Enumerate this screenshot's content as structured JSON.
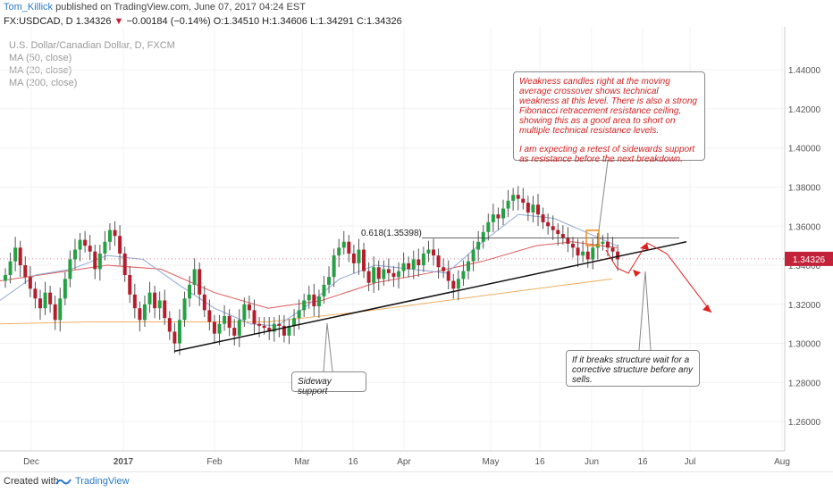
{
  "header": {
    "author": "Tom_Killick",
    "published": "published on TradingView.com, June 07, 2017 04:24 EST"
  },
  "quote": {
    "symbol": "FX:USDCAD, D",
    "last": "1.34326",
    "change": "−0.00184 (−0.14%)",
    "o": "O:1.34510",
    "h": "H:1.34606",
    "l": "L:1.34291",
    "c": "C:1.34326"
  },
  "legend": {
    "series": "U.S. Dollar/Canadian Dollar, D, FXCM",
    "ma50": "MA (50, close)",
    "ma20": "MA (20, close)",
    "ma200": "MA (200, close)"
  },
  "annotations": {
    "top_note_1": "Weakness candles right at the moving average crossover shows technical weakness at this level. There is also a strong Fibonacci retracement resistance ceiling, showing this as a good area to short on multiple technical resistance levels.",
    "top_note_2": "I am expecting a retest of sidewards support as resistance before the next breakdown.",
    "bottom_note": "If it breaks structure wait for a corrective structure before any sells.",
    "side_note": "Sideway support",
    "fib_label": "0.618(1.35398)"
  },
  "footer": {
    "created": "Created with",
    "brand": "TradingView"
  },
  "colors": {
    "up": "#26a044",
    "down": "#b41e2c",
    "ma20": "#8fa8d8",
    "ma50": "#e05a5a",
    "ma200": "#f0b060",
    "arrow": "#e02020",
    "price_tag": "#c2223a"
  },
  "chart_data": {
    "type": "candlestick",
    "y_ticks": [
      "1.44000",
      "1.42000",
      "1.40000",
      "1.38000",
      "1.36000",
      "1.34000",
      "1.32000",
      "1.30000",
      "1.28000",
      "1.26000"
    ],
    "x_ticks": [
      "Dec",
      "2017",
      "Feb",
      "Mar",
      "16",
      "Apr",
      "May",
      "16",
      "Jun",
      "16",
      "Jul",
      "Aug"
    ],
    "ylim": [
      1.245,
      1.462
    ],
    "current_price_label": "1.34326",
    "fib_level": 1.35398,
    "closes": [
      1.335,
      1.342,
      1.349,
      1.34,
      1.334,
      1.328,
      1.323,
      1.318,
      1.326,
      1.32,
      1.312,
      1.323,
      1.333,
      1.343,
      1.348,
      1.353,
      1.35,
      1.347,
      1.338,
      1.346,
      1.352,
      1.358,
      1.355,
      1.346,
      1.335,
      1.325,
      1.318,
      1.312,
      1.32,
      1.326,
      1.318,
      1.322,
      1.313,
      1.306,
      1.3,
      1.312,
      1.323,
      1.33,
      1.338,
      1.325,
      1.317,
      1.311,
      1.305,
      1.31,
      1.314,
      1.308,
      1.304,
      1.312,
      1.32,
      1.317,
      1.31,
      1.309,
      1.308,
      1.306,
      1.31,
      1.309,
      1.304,
      1.309,
      1.313,
      1.317,
      1.322,
      1.325,
      1.319,
      1.324,
      1.33,
      1.334,
      1.345,
      1.349,
      1.352,
      1.346,
      1.341,
      1.348,
      1.337,
      1.331,
      1.339,
      1.333,
      1.338,
      1.336,
      1.334,
      1.337,
      1.341,
      1.338,
      1.343,
      1.34,
      1.346,
      1.348,
      1.345,
      1.339,
      1.337,
      1.332,
      1.328,
      1.333,
      1.337,
      1.342,
      1.348,
      1.352,
      1.357,
      1.362,
      1.366,
      1.364,
      1.369,
      1.373,
      1.376,
      1.374,
      1.372,
      1.367,
      1.371,
      1.366,
      1.362,
      1.36,
      1.358,
      1.356,
      1.354,
      1.351,
      1.349,
      1.345,
      1.347,
      1.343,
      1.349,
      1.351,
      1.352,
      1.349,
      1.347,
      1.343
    ],
    "ma20_points": [
      [
        0,
        1.322
      ],
      [
        40,
        1.335
      ],
      [
        80,
        1.338
      ],
      [
        120,
        1.345
      ],
      [
        160,
        1.343
      ],
      [
        200,
        1.33
      ],
      [
        240,
        1.318
      ],
      [
        280,
        1.31
      ],
      [
        310,
        1.309
      ],
      [
        340,
        1.318
      ],
      [
        380,
        1.333
      ],
      [
        420,
        1.34
      ],
      [
        460,
        1.338
      ],
      [
        500,
        1.336
      ],
      [
        540,
        1.352
      ],
      [
        580,
        1.366
      ],
      [
        620,
        1.364
      ],
      [
        660,
        1.356
      ],
      [
        690,
        1.35
      ]
    ],
    "ma50_points": [
      [
        0,
        1.332
      ],
      [
        60,
        1.336
      ],
      [
        120,
        1.34
      ],
      [
        180,
        1.338
      ],
      [
        240,
        1.326
      ],
      [
        300,
        1.318
      ],
      [
        360,
        1.322
      ],
      [
        420,
        1.331
      ],
      [
        480,
        1.336
      ],
      [
        540,
        1.342
      ],
      [
        600,
        1.35
      ],
      [
        640,
        1.352
      ],
      [
        690,
        1.349
      ]
    ],
    "ma200_points": [
      [
        0,
        1.31
      ],
      [
        100,
        1.311
      ],
      [
        200,
        1.311
      ],
      [
        300,
        1.311
      ],
      [
        400,
        1.316
      ],
      [
        500,
        1.322
      ],
      [
        600,
        1.328
      ],
      [
        685,
        1.333
      ]
    ],
    "support_line": [
      [
        195,
        1.296
      ],
      [
        768,
        1.352
      ]
    ],
    "fib_line": [
      [
        404,
        1.354
      ],
      [
        760,
        1.354
      ]
    ]
  }
}
